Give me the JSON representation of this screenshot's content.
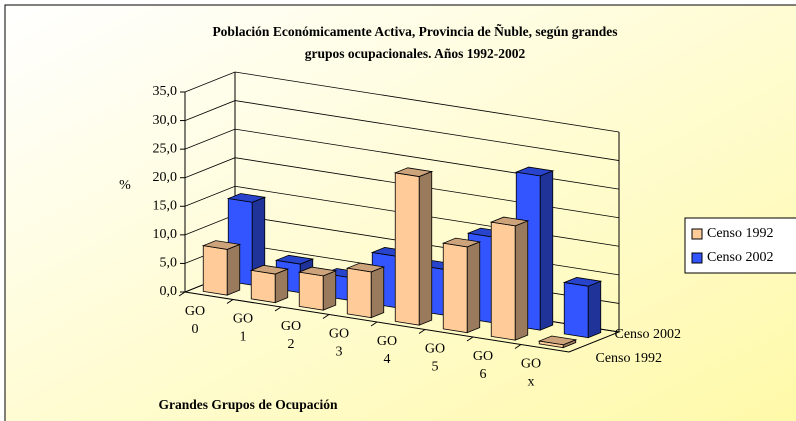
{
  "chart_data": {
    "type": "bar3d",
    "title": "Población Económicamente Activa, Provincia de Ñuble, según grandes grupos ocupacionales. Años 1992-2002",
    "ylabel": "%",
    "xlabel": "Grandes Grupos de Ocupación",
    "categories": [
      "GO 0",
      "GO 1",
      "GO 2",
      "GO 3",
      "GO 4",
      "GO 5",
      "GO 6",
      "GO x"
    ],
    "series": [
      {
        "name": "Censo 1992",
        "color": "#ffcc99",
        "values": [
          8,
          5,
          6,
          8,
          26,
          15,
          20,
          0.5
        ]
      },
      {
        "name": "Censo 2002",
        "color": "#3355ff",
        "values": [
          14.5,
          5,
          4,
          9,
          8,
          15,
          27,
          9
        ]
      }
    ],
    "ylim": [
      0,
      35
    ],
    "yticks": [
      {
        "value": 0,
        "label": "0,0"
      },
      {
        "value": 5,
        "label": "5,0"
      },
      {
        "value": 10,
        "label": "10,0"
      },
      {
        "value": 15,
        "label": "15,0"
      },
      {
        "value": 20,
        "label": "20,0"
      },
      {
        "value": 25,
        "label": "25,0"
      },
      {
        "value": 30,
        "label": "30,0"
      },
      {
        "value": 35,
        "label": "35,0"
      }
    ],
    "grid": true,
    "legend": "right"
  }
}
